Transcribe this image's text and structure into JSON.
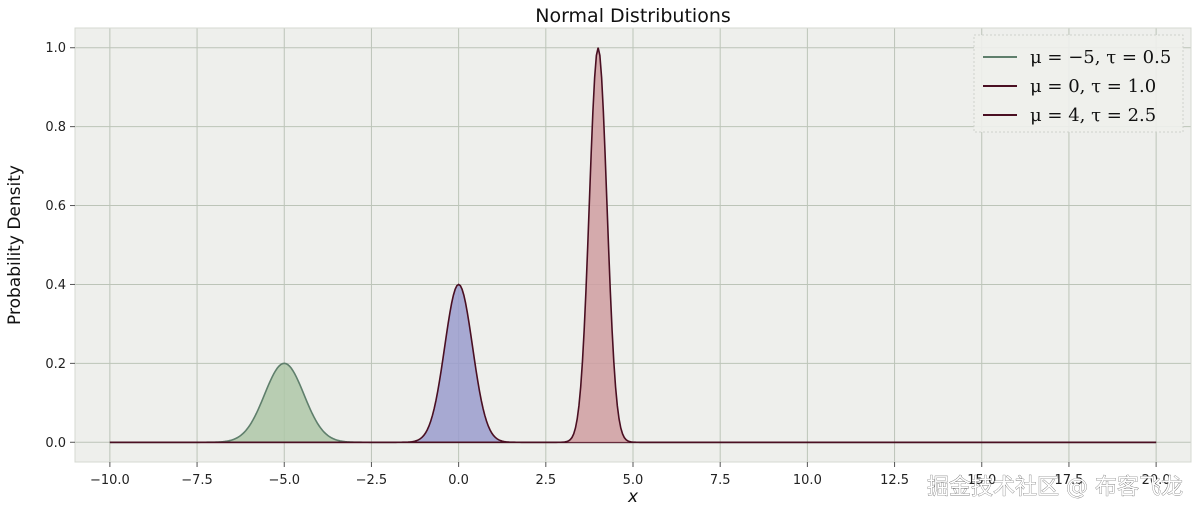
{
  "chart_data": {
    "type": "area",
    "title": "Normal Distributions",
    "xlabel": "x",
    "ylabel": "Probability Density",
    "xlim": [
      -11,
      21
    ],
    "ylim": [
      -0.05,
      1.05
    ],
    "x_range": [
      -10,
      20
    ],
    "xticks": [
      "−10.0",
      "−7.5",
      "−5.0",
      "−2.5",
      "0.0",
      "2.5",
      "5.0",
      "7.5",
      "10.0",
      "12.5",
      "15.0",
      "17.5",
      "20.0"
    ],
    "xtick_values": [
      -10,
      -7.5,
      -5,
      -2.5,
      0,
      2.5,
      5,
      7.5,
      10,
      12.5,
      15,
      17.5,
      20
    ],
    "yticks": [
      "0.0",
      "0.2",
      "0.4",
      "0.6",
      "0.8",
      "1.0"
    ],
    "ytick_values": [
      0,
      0.2,
      0.4,
      0.6,
      0.8,
      1.0
    ],
    "grid": true,
    "legend_position": "top-right",
    "series": [
      {
        "name": "μ = −5,  τ = 0.5",
        "mu": -5,
        "tau": 0.5,
        "peak": 0.2,
        "fill": "#aec7a8",
        "line": "#5f7f6c"
      },
      {
        "name": "μ = 0,  τ = 1.0",
        "mu": 0,
        "tau": 1.0,
        "peak": 0.4,
        "fill": "#9a9cce",
        "line": "#4a0f22"
      },
      {
        "name": "μ = 4,  τ = 2.5",
        "mu": 4,
        "tau": 2.5,
        "peak": 1.0,
        "fill": "#cf9da1",
        "line": "#4a0f22"
      }
    ]
  },
  "watermark": "掘金技术社区 @ 布客飞龙"
}
